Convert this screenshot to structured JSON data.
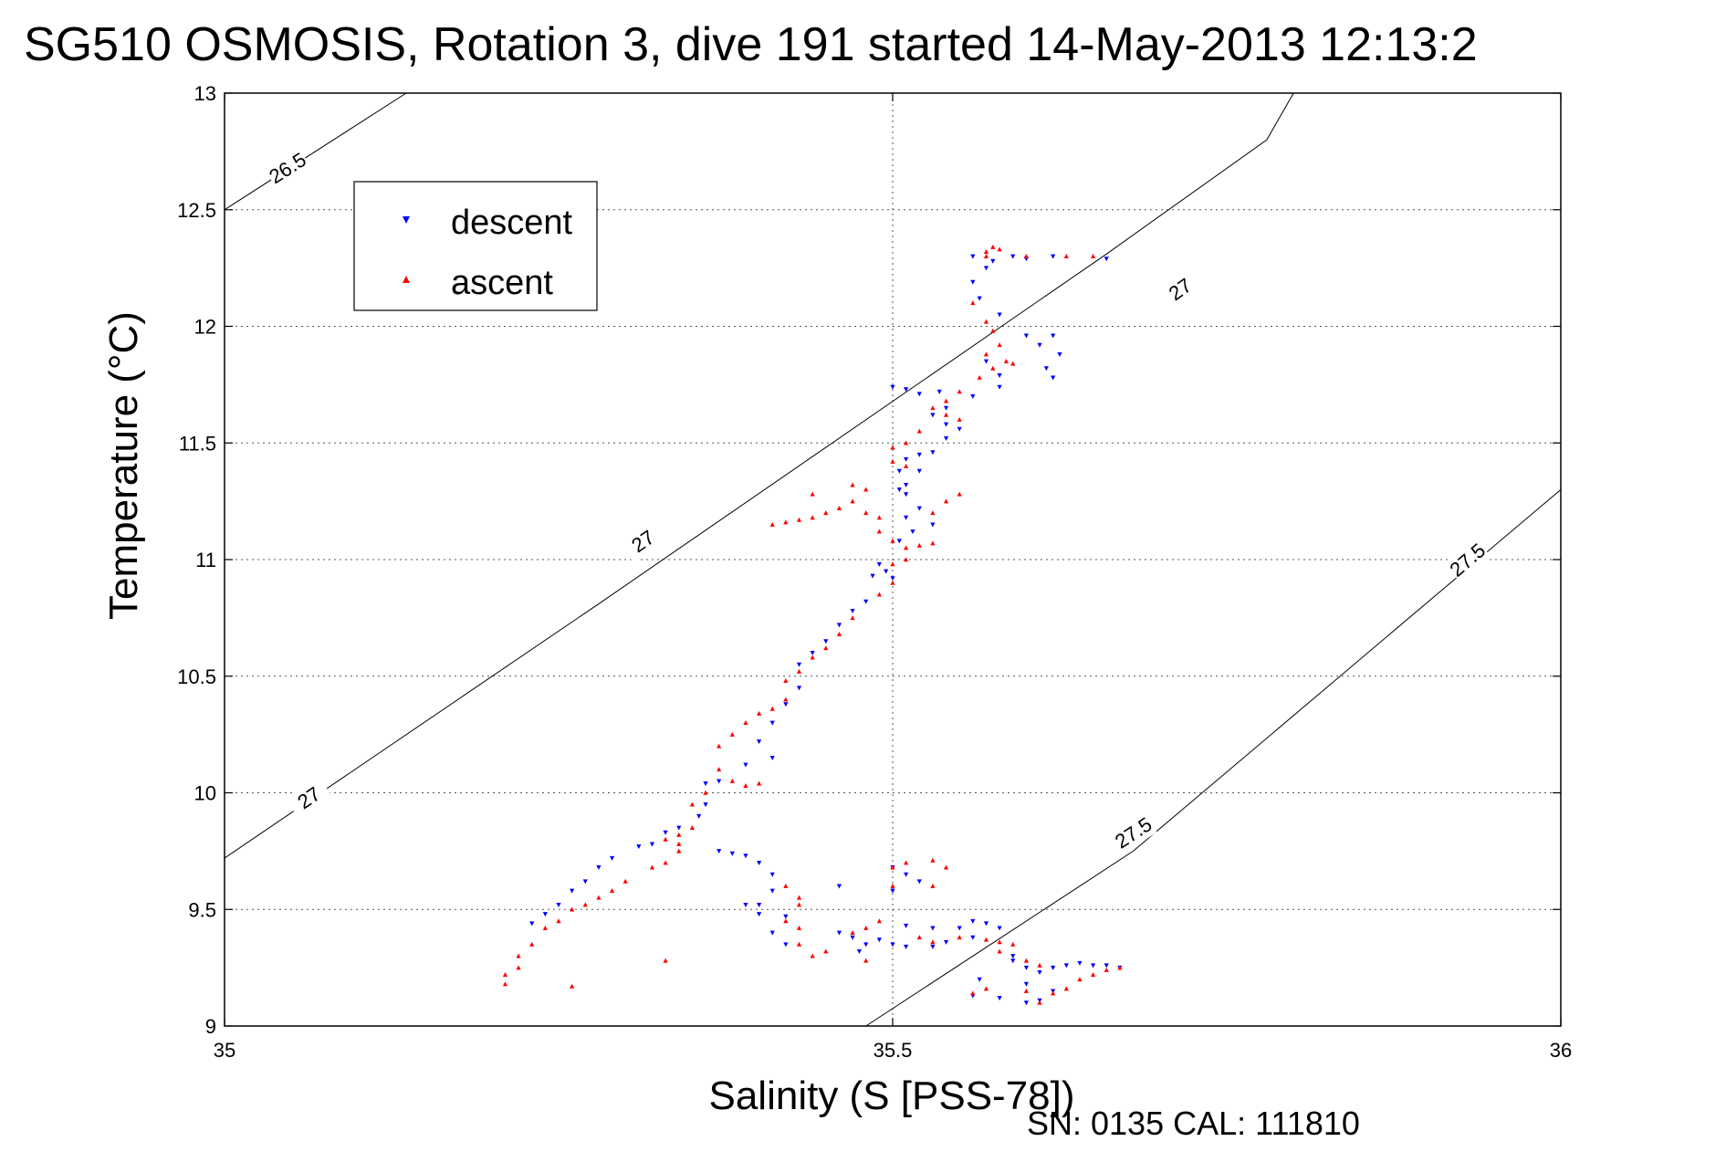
{
  "chart_data": {
    "type": "scatter",
    "title": "SG510 OSMOSIS, Rotation 3, dive 191 started 14-May-2013 12:13:2",
    "xlabel": "Salinity (S [PSS-78])",
    "ylabel": "Temperature (°C)",
    "xlim": [
      35,
      36
    ],
    "ylim": [
      9,
      13
    ],
    "xticks": [
      35,
      35.5,
      36
    ],
    "xtick_labels": [
      "35",
      "35.5",
      "36"
    ],
    "yticks": [
      9,
      9.5,
      10,
      10.5,
      11,
      11.5,
      12,
      12.5,
      13
    ],
    "ytick_labels": [
      "9",
      "9.5",
      "10",
      "10.5",
      "11",
      "11.5",
      "12",
      "12.5",
      "13"
    ],
    "grid": true,
    "grid_x": [
      35.5
    ],
    "legend_position": "top-left",
    "footer": "SN: 0135  CAL: 111810",
    "isopycnals": [
      {
        "label": "26.5",
        "points": [
          [
            35.0,
            12.5
          ],
          [
            35.136,
            13.0
          ]
        ],
        "label_positions": [
          [
            35.047,
            12.68
          ]
        ]
      },
      {
        "label": "27",
        "points": [
          [
            35.0,
            9.72
          ],
          [
            35.28,
            10.81
          ],
          [
            35.66,
            12.31
          ],
          [
            35.78,
            12.8
          ],
          [
            35.8,
            13.0
          ]
        ],
        "label_positions": [
          [
            35.063,
            9.98
          ],
          [
            35.313,
            11.08
          ],
          [
            35.715,
            12.16
          ]
        ]
      },
      {
        "label": "27.5",
        "points": [
          [
            35.48,
            9.0
          ],
          [
            35.68,
            9.75
          ],
          [
            36.0,
            11.3
          ]
        ],
        "label_positions": [
          [
            35.68,
            9.83
          ],
          [
            35.93,
            11.0
          ]
        ]
      }
    ],
    "series": [
      {
        "name": "descent",
        "color": "#0000ff",
        "marker": "triangle-down",
        "points": [
          [
            35.56,
            12.3
          ],
          [
            35.575,
            12.28
          ],
          [
            35.59,
            12.3
          ],
          [
            35.6,
            12.29
          ],
          [
            35.57,
            12.25
          ],
          [
            35.62,
            12.3
          ],
          [
            35.66,
            12.29
          ],
          [
            35.56,
            12.19
          ],
          [
            35.565,
            12.12
          ],
          [
            35.58,
            12.05
          ],
          [
            35.6,
            11.96
          ],
          [
            35.61,
            11.92
          ],
          [
            35.62,
            11.96
          ],
          [
            35.625,
            11.88
          ],
          [
            35.615,
            11.82
          ],
          [
            35.62,
            11.78
          ],
          [
            35.57,
            11.85
          ],
          [
            35.58,
            11.79
          ],
          [
            35.58,
            11.74
          ],
          [
            35.56,
            11.7
          ],
          [
            35.54,
            11.65
          ],
          [
            35.5,
            11.74
          ],
          [
            35.51,
            11.73
          ],
          [
            35.52,
            11.71
          ],
          [
            35.535,
            11.72
          ],
          [
            35.55,
            11.56
          ],
          [
            35.53,
            11.62
          ],
          [
            35.54,
            11.58
          ],
          [
            35.54,
            11.52
          ],
          [
            35.52,
            11.45
          ],
          [
            35.51,
            11.43
          ],
          [
            35.53,
            11.46
          ],
          [
            35.52,
            11.38
          ],
          [
            35.505,
            11.38
          ],
          [
            35.51,
            11.32
          ],
          [
            35.505,
            11.3
          ],
          [
            35.51,
            11.28
          ],
          [
            35.52,
            11.22
          ],
          [
            35.51,
            11.18
          ],
          [
            35.515,
            11.12
          ],
          [
            35.53,
            11.15
          ],
          [
            35.505,
            11.08
          ],
          [
            35.49,
            10.98
          ],
          [
            35.495,
            10.95
          ],
          [
            35.5,
            10.92
          ],
          [
            35.485,
            10.93
          ],
          [
            35.48,
            10.82
          ],
          [
            35.47,
            10.78
          ],
          [
            35.46,
            10.72
          ],
          [
            35.45,
            10.65
          ],
          [
            35.44,
            10.6
          ],
          [
            35.43,
            10.55
          ],
          [
            35.43,
            10.45
          ],
          [
            35.42,
            10.38
          ],
          [
            35.41,
            10.3
          ],
          [
            35.4,
            10.22
          ],
          [
            35.41,
            10.15
          ],
          [
            35.39,
            10.12
          ],
          [
            35.37,
            10.05
          ],
          [
            35.36,
            10.04
          ],
          [
            35.36,
            9.95
          ],
          [
            35.355,
            9.9
          ],
          [
            35.34,
            9.85
          ],
          [
            35.33,
            9.83
          ],
          [
            35.32,
            9.78
          ],
          [
            35.31,
            9.77
          ],
          [
            35.29,
            9.72
          ],
          [
            35.28,
            9.68
          ],
          [
            35.27,
            9.62
          ],
          [
            35.26,
            9.58
          ],
          [
            35.25,
            9.52
          ],
          [
            35.24,
            9.48
          ],
          [
            35.23,
            9.44
          ],
          [
            35.37,
            9.75
          ],
          [
            35.38,
            9.74
          ],
          [
            35.39,
            9.73
          ],
          [
            35.4,
            9.7
          ],
          [
            35.41,
            9.65
          ],
          [
            35.41,
            9.58
          ],
          [
            35.4,
            9.52
          ],
          [
            35.4,
            9.48
          ],
          [
            35.42,
            9.47
          ],
          [
            35.41,
            9.4
          ],
          [
            35.42,
            9.35
          ],
          [
            35.39,
            9.52
          ],
          [
            35.46,
            9.6
          ],
          [
            35.46,
            9.4
          ],
          [
            35.47,
            9.38
          ],
          [
            35.48,
            9.35
          ],
          [
            35.475,
            9.32
          ],
          [
            35.49,
            9.37
          ],
          [
            35.5,
            9.35
          ],
          [
            35.51,
            9.34
          ],
          [
            35.53,
            9.34
          ],
          [
            35.54,
            9.36
          ],
          [
            35.5,
            9.58
          ],
          [
            35.51,
            9.65
          ],
          [
            35.52,
            9.62
          ],
          [
            35.5,
            9.68
          ],
          [
            35.51,
            9.43
          ],
          [
            35.53,
            9.42
          ],
          [
            35.55,
            9.42
          ],
          [
            35.56,
            9.45
          ],
          [
            35.57,
            9.44
          ],
          [
            35.58,
            9.42
          ],
          [
            35.56,
            9.38
          ],
          [
            35.565,
            9.2
          ],
          [
            35.56,
            9.13
          ],
          [
            35.58,
            9.12
          ],
          [
            35.59,
            9.28
          ],
          [
            35.59,
            9.3
          ],
          [
            35.6,
            9.25
          ],
          [
            35.61,
            9.23
          ],
          [
            35.62,
            9.25
          ],
          [
            35.63,
            9.26
          ],
          [
            35.64,
            9.27
          ],
          [
            35.65,
            9.26
          ],
          [
            35.66,
            9.26
          ],
          [
            35.67,
            9.25
          ],
          [
            35.6,
            9.1
          ],
          [
            35.61,
            9.11
          ],
          [
            35.6,
            9.18
          ],
          [
            35.62,
            9.15
          ]
        ]
      },
      {
        "name": "ascent",
        "color": "#ff0000",
        "marker": "triangle-up",
        "points": [
          [
            35.57,
            12.32
          ],
          [
            35.575,
            12.34
          ],
          [
            35.58,
            12.33
          ],
          [
            35.6,
            12.3
          ],
          [
            35.63,
            12.3
          ],
          [
            35.65,
            12.3
          ],
          [
            35.57,
            12.3
          ],
          [
            35.56,
            12.1
          ],
          [
            35.57,
            12.02
          ],
          [
            35.575,
            11.98
          ],
          [
            35.58,
            11.92
          ],
          [
            35.57,
            11.88
          ],
          [
            35.585,
            11.85
          ],
          [
            35.59,
            11.84
          ],
          [
            35.575,
            11.82
          ],
          [
            35.565,
            11.78
          ],
          [
            35.55,
            11.72
          ],
          [
            35.54,
            11.68
          ],
          [
            35.53,
            11.65
          ],
          [
            35.54,
            11.62
          ],
          [
            35.55,
            11.6
          ],
          [
            35.52,
            11.55
          ],
          [
            35.51,
            11.5
          ],
          [
            35.5,
            11.48
          ],
          [
            35.5,
            11.42
          ],
          [
            35.51,
            11.4
          ],
          [
            35.48,
            11.3
          ],
          [
            35.47,
            11.25
          ],
          [
            35.46,
            11.22
          ],
          [
            35.45,
            11.2
          ],
          [
            35.44,
            11.18
          ],
          [
            35.43,
            11.17
          ],
          [
            35.42,
            11.16
          ],
          [
            35.41,
            11.15
          ],
          [
            35.44,
            11.28
          ],
          [
            35.47,
            11.32
          ],
          [
            35.48,
            11.2
          ],
          [
            35.49,
            11.18
          ],
          [
            35.49,
            11.12
          ],
          [
            35.5,
            11.08
          ],
          [
            35.51,
            11.05
          ],
          [
            35.52,
            11.06
          ],
          [
            35.53,
            11.07
          ],
          [
            35.53,
            11.2
          ],
          [
            35.54,
            11.25
          ],
          [
            35.55,
            11.28
          ],
          [
            35.51,
            11.0
          ],
          [
            35.5,
            10.98
          ],
          [
            35.5,
            10.9
          ],
          [
            35.49,
            10.85
          ],
          [
            35.47,
            10.75
          ],
          [
            35.46,
            10.68
          ],
          [
            35.45,
            10.62
          ],
          [
            35.44,
            10.58
          ],
          [
            35.43,
            10.52
          ],
          [
            35.42,
            10.48
          ],
          [
            35.42,
            10.4
          ],
          [
            35.41,
            10.36
          ],
          [
            35.4,
            10.34
          ],
          [
            35.39,
            10.3
          ],
          [
            35.38,
            10.25
          ],
          [
            35.37,
            10.2
          ],
          [
            35.37,
            10.1
          ],
          [
            35.38,
            10.05
          ],
          [
            35.39,
            10.03
          ],
          [
            35.4,
            10.04
          ],
          [
            35.36,
            10.0
          ],
          [
            35.35,
            9.95
          ],
          [
            35.35,
            9.85
          ],
          [
            35.34,
            9.82
          ],
          [
            35.34,
            9.75
          ],
          [
            35.33,
            9.7
          ],
          [
            35.32,
            9.68
          ],
          [
            35.3,
            9.62
          ],
          [
            35.29,
            9.58
          ],
          [
            35.28,
            9.55
          ],
          [
            35.27,
            9.52
          ],
          [
            35.26,
            9.5
          ],
          [
            35.25,
            9.45
          ],
          [
            35.24,
            9.42
          ],
          [
            35.23,
            9.35
          ],
          [
            35.22,
            9.3
          ],
          [
            35.22,
            9.25
          ],
          [
            35.21,
            9.22
          ],
          [
            35.21,
            9.18
          ],
          [
            35.33,
            9.8
          ],
          [
            35.34,
            9.78
          ],
          [
            35.33,
            9.28
          ],
          [
            35.26,
            9.17
          ],
          [
            35.42,
            9.6
          ],
          [
            35.43,
            9.55
          ],
          [
            35.43,
            9.52
          ],
          [
            35.42,
            9.45
          ],
          [
            35.43,
            9.42
          ],
          [
            35.43,
            9.35
          ],
          [
            35.44,
            9.3
          ],
          [
            35.45,
            9.32
          ],
          [
            35.47,
            9.4
          ],
          [
            35.48,
            9.42
          ],
          [
            35.49,
            9.45
          ],
          [
            35.48,
            9.28
          ],
          [
            35.5,
            9.6
          ],
          [
            35.5,
            9.68
          ],
          [
            35.51,
            9.7
          ],
          [
            35.53,
            9.71
          ],
          [
            35.54,
            9.68
          ],
          [
            35.53,
            9.6
          ],
          [
            35.52,
            9.38
          ],
          [
            35.53,
            9.36
          ],
          [
            35.55,
            9.38
          ],
          [
            35.57,
            9.37
          ],
          [
            35.58,
            9.36
          ],
          [
            35.59,
            9.35
          ],
          [
            35.58,
            9.32
          ],
          [
            35.56,
            9.14
          ],
          [
            35.57,
            9.16
          ],
          [
            35.6,
            9.15
          ],
          [
            35.61,
            9.1
          ],
          [
            35.62,
            9.14
          ],
          [
            35.63,
            9.16
          ],
          [
            35.64,
            9.2
          ],
          [
            35.65,
            9.22
          ],
          [
            35.66,
            9.24
          ],
          [
            35.67,
            9.25
          ],
          [
            35.6,
            9.28
          ],
          [
            35.61,
            9.26
          ]
        ]
      }
    ]
  }
}
